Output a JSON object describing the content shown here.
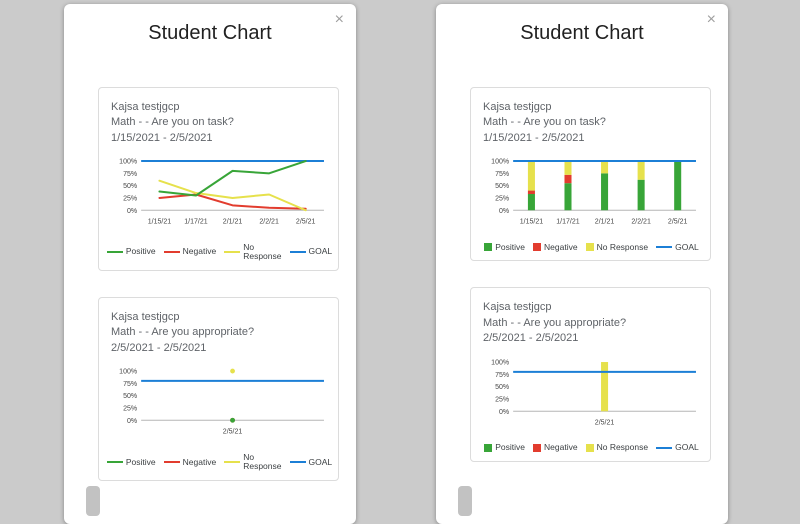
{
  "page": {
    "background": "#cbcbcb"
  },
  "colors": {
    "positive": "#38a538",
    "negative": "#e23c2e",
    "no_response": "#e6e14c",
    "goal": "#1c7fd6"
  },
  "modals": [
    {
      "title": "Student Chart",
      "close": "×",
      "cards": [
        {
          "student": "Kajsa testjgcp",
          "question": "Math - - Are you on task?",
          "dates": "1/15/2021 - 2/5/2021",
          "chart_index": 0
        },
        {
          "student": "Kajsa testjgcp",
          "question": "Math - - Are you appropriate?",
          "dates": "2/5/2021 - 2/5/2021",
          "chart_index": 1
        }
      ]
    },
    {
      "title": "Student Chart",
      "close": "×",
      "cards": [
        {
          "student": "Kajsa testjgcp",
          "question": "Math - - Are you on task?",
          "dates": "1/15/2021 - 2/5/2021",
          "chart_index": 2
        },
        {
          "student": "Kajsa testjgcp",
          "question": "Math - - Are you appropriate?",
          "dates": "2/5/2021 - 2/5/2021",
          "chart_index": 3
        }
      ]
    }
  ],
  "chart_data": [
    {
      "type": "line",
      "title": "Math - - Are you on task?",
      "x": [
        "1/15/21",
        "1/17/21",
        "2/1/21",
        "2/2/21",
        "2/5/21"
      ],
      "ylim": [
        0,
        100
      ],
      "y_tick_values": [
        100,
        75,
        50,
        25,
        0
      ],
      "y_tick_labels": [
        "100%",
        "75%",
        "50%",
        "25%",
        "0%"
      ],
      "legend_position": "bottom",
      "series": [
        {
          "name": "Positive",
          "color": "#38a538",
          "values": [
            38,
            30,
            80,
            75,
            100
          ]
        },
        {
          "name": "Negative",
          "color": "#e23c2e",
          "values": [
            25,
            32,
            10,
            5,
            3
          ]
        },
        {
          "name": "No Response",
          "color": "#e6e14c",
          "values": [
            60,
            35,
            25,
            32,
            0
          ]
        },
        {
          "name": "GOAL",
          "color": "#1c7fd6",
          "role": "goal",
          "values": [
            100,
            100,
            100,
            100,
            100
          ]
        }
      ]
    },
    {
      "type": "line",
      "title": "Math - - Are you appropriate?",
      "x": [
        "2/5/21"
      ],
      "ylim": [
        0,
        100
      ],
      "y_tick_values": [
        100,
        75,
        50,
        25,
        0
      ],
      "y_tick_labels": [
        "100%",
        "75%",
        "50%",
        "25%",
        "0%"
      ],
      "legend_position": "bottom",
      "series": [
        {
          "name": "Positive",
          "color": "#38a538",
          "values": [
            0
          ]
        },
        {
          "name": "Negative",
          "color": "#e23c2e",
          "values": [
            0
          ]
        },
        {
          "name": "No Response",
          "color": "#e6e14c",
          "values": [
            100
          ]
        },
        {
          "name": "GOAL",
          "color": "#1c7fd6",
          "role": "goal",
          "values": [
            80
          ]
        }
      ]
    },
    {
      "type": "bar",
      "title": "Math - - Are you on task?",
      "x": [
        "1/15/21",
        "1/17/21",
        "2/1/21",
        "2/2/21",
        "2/5/21"
      ],
      "ylim": [
        0,
        100
      ],
      "y_tick_values": [
        100,
        75,
        50,
        25,
        0
      ],
      "y_tick_labels": [
        "100%",
        "75%",
        "50%",
        "25%",
        "0%"
      ],
      "stacked": true,
      "legend_position": "bottom",
      "series": [
        {
          "name": "Positive",
          "color": "#38a538",
          "values": [
            33,
            55,
            75,
            62,
            100
          ]
        },
        {
          "name": "Negative",
          "color": "#e23c2e",
          "values": [
            7,
            17,
            0,
            0,
            0
          ]
        },
        {
          "name": "No Response",
          "color": "#e6e14c",
          "values": [
            60,
            28,
            25,
            38,
            0
          ]
        },
        {
          "name": "GOAL",
          "color": "#1c7fd6",
          "role": "goal",
          "values": [
            100,
            100,
            100,
            100,
            100
          ]
        }
      ]
    },
    {
      "type": "bar",
      "title": "Math - - Are you appropriate?",
      "x": [
        "2/5/21"
      ],
      "ylim": [
        0,
        100
      ],
      "y_tick_values": [
        100,
        75,
        50,
        25,
        0
      ],
      "y_tick_labels": [
        "100%",
        "75%",
        "50%",
        "25%",
        "0%"
      ],
      "stacked": true,
      "legend_position": "bottom",
      "series": [
        {
          "name": "Positive",
          "color": "#38a538",
          "values": [
            0
          ]
        },
        {
          "name": "Negative",
          "color": "#e23c2e",
          "values": [
            0
          ]
        },
        {
          "name": "No Response",
          "color": "#e6e14c",
          "values": [
            100
          ]
        },
        {
          "name": "GOAL",
          "color": "#1c7fd6",
          "role": "goal",
          "values": [
            80
          ]
        }
      ]
    }
  ]
}
